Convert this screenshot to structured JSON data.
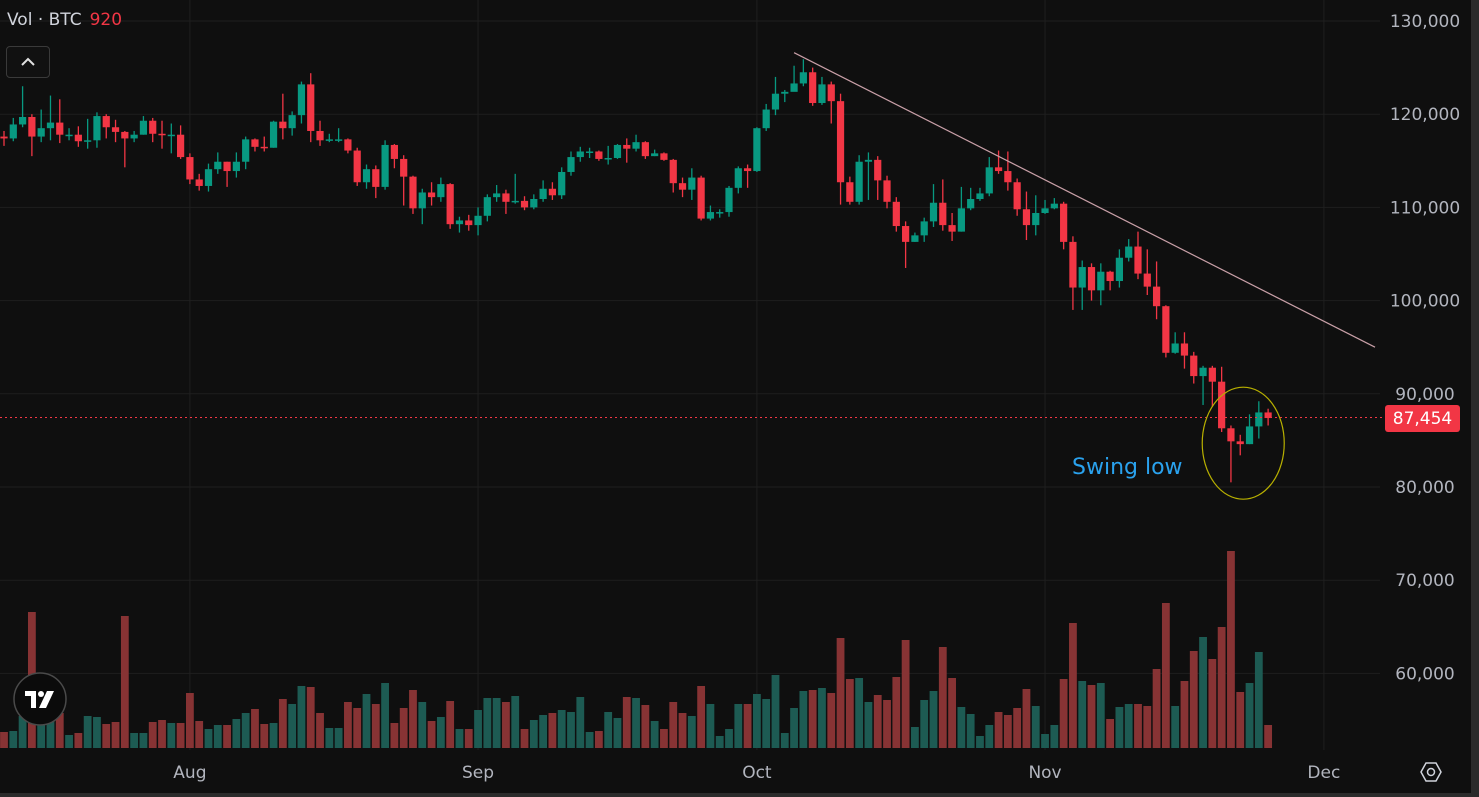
{
  "legend": {
    "label": "Vol · BTC",
    "value": "920"
  },
  "current_price_label": "87,454",
  "annotation": {
    "text": "Swing low"
  },
  "icons": {
    "collapse": "chevron-up-icon",
    "logo": "tradingview-logo",
    "settings": "settings-hexagon-icon"
  },
  "colors": {
    "up": "#089981",
    "down": "#f23645",
    "vol_up": "#1d5b53",
    "vol_down": "#873334",
    "trendline": "#c9a0a8",
    "ellipse": "#b8b000",
    "annotation": "#2aa2ee"
  },
  "chart_data": {
    "type": "candlestick",
    "symbol": "BTC",
    "price_units": "thousands USD",
    "open_rule": "open equals previous close",
    "first_open": 117.6,
    "start_date": "Jul 12",
    "interval": "1 day",
    "close": [
      117.4,
      118.9,
      119.7,
      117.6,
      118.5,
      119.1,
      117.8,
      117.8,
      117.1,
      117.2,
      119.8,
      118.6,
      118.1,
      117.4,
      117.8,
      119.3,
      117.9,
      117.8,
      117.8,
      115.4,
      113.0,
      112.3,
      114.1,
      114.9,
      113.9,
      114.9,
      117.3,
      116.5,
      116.4,
      119.2,
      118.5,
      119.9,
      123.2,
      118.2,
      117.2,
      117.3,
      117.3,
      116.1,
      112.7,
      114.1,
      112.2,
      116.7,
      115.2,
      113.3,
      109.9,
      111.6,
      111.1,
      112.5,
      108.2,
      108.6,
      108.1,
      109.1,
      111.1,
      111.5,
      110.6,
      110.7,
      110.0,
      110.9,
      112.0,
      111.3,
      113.8,
      115.4,
      116.0,
      116.0,
      115.2,
      115.3,
      116.7,
      116.3,
      117.0,
      115.5,
      115.8,
      115.1,
      112.6,
      111.9,
      113.2,
      108.8,
      109.5,
      109.5,
      112.1,
      114.2,
      113.9,
      118.5,
      120.5,
      122.2,
      122.4,
      123.3,
      124.5,
      121.2,
      123.2,
      121.4,
      112.7,
      110.6,
      114.9,
      115.1,
      112.9,
      110.6,
      108.0,
      106.3,
      107.0,
      108.5,
      110.5,
      108.1,
      107.4,
      109.9,
      110.9,
      111.5,
      114.3,
      113.9,
      112.7,
      109.8,
      108.1,
      109.4,
      109.9,
      110.4,
      106.3,
      101.4,
      103.6,
      101.1,
      103.1,
      102.1,
      104.6,
      105.8,
      102.9,
      101.5,
      99.4,
      94.4,
      95.4,
      94.1,
      91.9,
      92.8,
      91.3,
      86.3,
      84.9,
      84.6,
      86.5,
      88.0,
      87.4
    ],
    "high": [
      118.2,
      119.6,
      123.0,
      120.0,
      120.5,
      122.0,
      121.6,
      118.5,
      118.7,
      119.5,
      120.2,
      120.0,
      119.4,
      118.2,
      118.2,
      119.8,
      119.6,
      119.3,
      119.0,
      118.8,
      115.8,
      113.6,
      114.7,
      115.9,
      114.9,
      115.9,
      117.6,
      117.4,
      117.6,
      119.3,
      122.2,
      120.3,
      123.5,
      124.4,
      119.3,
      117.9,
      118.5,
      117.4,
      116.4,
      114.6,
      114.5,
      117.2,
      116.8,
      115.6,
      113.4,
      112.0,
      112.7,
      113.2,
      112.6,
      109.0,
      109.2,
      110.0,
      111.4,
      112.4,
      111.9,
      113.6,
      111.2,
      111.4,
      112.9,
      112.7,
      114.3,
      116.0,
      116.5,
      116.4,
      116.1,
      116.6,
      116.8,
      117.4,
      117.8,
      117.1,
      116.2,
      115.9,
      115.2,
      113.2,
      114.2,
      113.4,
      110.2,
      109.8,
      112.3,
      114.4,
      114.6,
      118.6,
      121.1,
      124.0,
      122.6,
      125.2,
      125.9,
      125.0,
      124.0,
      123.5,
      122.2,
      113.3,
      115.6,
      115.9,
      115.5,
      113.4,
      111.1,
      108.5,
      107.3,
      108.9,
      112.5,
      113.0,
      109.4,
      112.2,
      112.1,
      112.1,
      115.4,
      116.1,
      116.0,
      113.1,
      111.7,
      111.3,
      110.8,
      111.0,
      110.6,
      106.9,
      104.3,
      104.0,
      104.0,
      103.2,
      105.5,
      106.6,
      107.4,
      105.5,
      104.2,
      99.5,
      96.6,
      96.6,
      94.5,
      93.0,
      93.0,
      92.9,
      86.6,
      85.6,
      87.8,
      89.2,
      88.4
    ],
    "low": [
      116.6,
      117.1,
      118.6,
      115.5,
      117.0,
      117.2,
      116.9,
      117.2,
      116.5,
      116.3,
      116.4,
      117.4,
      117.0,
      114.3,
      117.0,
      117.8,
      117.0,
      116.3,
      115.8,
      115.2,
      112.5,
      111.8,
      111.7,
      113.6,
      112.2,
      113.2,
      114.1,
      116.0,
      116.0,
      116.4,
      117.3,
      117.7,
      119.0,
      117.0,
      116.6,
      117.0,
      117.0,
      115.8,
      112.3,
      112.0,
      111.0,
      111.9,
      114.2,
      110.2,
      109.3,
      108.2,
      110.2,
      110.6,
      107.7,
      107.3,
      107.5,
      107.0,
      108.5,
      110.6,
      109.3,
      110.4,
      109.7,
      109.8,
      110.6,
      110.8,
      110.9,
      113.4,
      114.9,
      115.3,
      115.0,
      114.6,
      115.2,
      114.8,
      116.0,
      115.2,
      115.5,
      115.0,
      111.6,
      111.1,
      110.8,
      108.6,
      108.6,
      108.9,
      109.0,
      111.5,
      112.1,
      113.8,
      118.2,
      119.9,
      121.3,
      123.1,
      123.0,
      120.9,
      121.0,
      119.0,
      110.3,
      110.3,
      110.3,
      110.8,
      110.8,
      109.9,
      107.4,
      103.5,
      106.3,
      106.3,
      107.9,
      107.5,
      106.4,
      107.4,
      109.7,
      110.7,
      111.2,
      113.6,
      111.8,
      109.1,
      106.5,
      107.0,
      109.3,
      109.8,
      105.5,
      99.0,
      99.0,
      100.0,
      99.5,
      101.1,
      101.4,
      104.2,
      102.3,
      100.6,
      98.0,
      93.9,
      94.3,
      92.7,
      91.1,
      88.8,
      88.6,
      85.9,
      80.5,
      83.4,
      84.6,
      85.2,
      86.6
    ],
    "volume_relative": [
      16,
      17,
      32,
      136,
      35,
      35,
      35,
      13,
      15,
      32,
      31,
      24,
      26,
      132,
      15,
      15,
      26,
      28,
      25,
      25,
      55,
      27,
      19,
      23,
      23,
      29,
      35,
      39,
      24,
      25,
      49,
      44,
      62,
      61,
      35,
      20,
      20,
      46,
      40,
      54,
      44,
      65,
      25,
      40,
      58,
      46,
      27,
      31,
      47,
      19,
      19,
      38,
      50,
      50,
      46,
      52,
      19,
      28,
      33,
      35,
      38,
      36,
      51,
      16,
      17,
      36,
      30,
      51,
      50,
      43,
      27,
      19,
      46,
      35,
      32,
      62,
      44,
      12,
      19,
      44,
      44,
      54,
      49,
      73,
      15,
      40,
      57,
      58,
      60,
      55,
      110,
      69,
      70,
      46,
      53,
      48,
      71,
      108,
      21,
      48,
      57,
      101,
      70,
      41,
      34,
      12,
      23,
      36,
      33,
      40,
      59,
      42,
      14,
      23,
      69,
      125,
      67,
      63,
      65,
      29,
      41,
      44,
      44,
      42,
      79,
      145,
      42,
      67,
      97,
      111,
      89,
      121,
      197,
      56,
      65,
      96,
      23
    ],
    "y_axis": {
      "ticks": [
        "130,000",
        "120,000",
        "110,000",
        "100,000",
        "90,000",
        "80,000",
        "70,000",
        "60,000"
      ],
      "tick_values": [
        130,
        120,
        110,
        100,
        90,
        80,
        70,
        60
      ],
      "range": [
        56,
        130
      ]
    },
    "x_axis": {
      "ticks": [
        "Aug",
        "Sep",
        "Oct",
        "Nov",
        "Dec"
      ],
      "tick_day_index": [
        20,
        51,
        81,
        112,
        142
      ]
    },
    "current_price": 87454,
    "trendline": {
      "from": {
        "day_index": 85,
        "price": 126.6
      },
      "to": {
        "day_index": 147.5,
        "price": 95.0
      }
    },
    "highlight": {
      "label": "Swing low",
      "center_day_index": 133,
      "center_price": 84.7
    },
    "grid": true
  }
}
